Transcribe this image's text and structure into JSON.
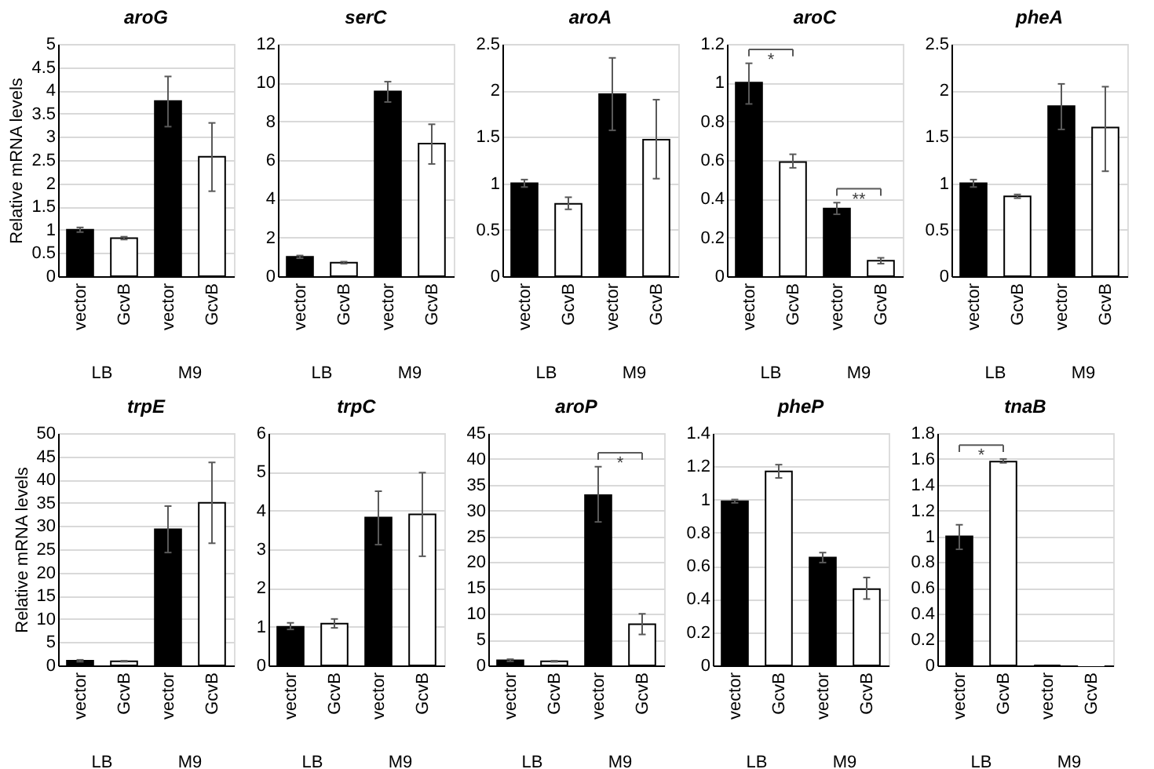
{
  "chart_data": [
    {
      "type": "bar",
      "title": "aroG",
      "ylabel": "Relative mRNA levels",
      "categories": [
        "vector",
        "GcvB",
        "vector",
        "GcvB"
      ],
      "values": [
        1.0,
        0.82,
        3.77,
        2.57
      ],
      "colors": [
        "#000000",
        "#ffffff",
        "#000000",
        "#ffffff"
      ],
      "errors": [
        [
          0.95,
          1.05
        ],
        [
          0.79,
          0.85
        ],
        [
          3.22,
          4.3
        ],
        [
          1.83,
          3.3
        ]
      ],
      "ylim": [
        0,
        5
      ],
      "yticks": [
        0,
        0.5,
        1,
        1.5,
        2,
        2.5,
        3,
        3.5,
        4,
        4.5,
        5
      ],
      "grid": "y",
      "annotations": [
        "LB",
        "M9"
      ]
    },
    {
      "type": "bar",
      "title": "serC",
      "categories": [
        "vector",
        "GcvB",
        "vector",
        "GcvB"
      ],
      "values": [
        1.0,
        0.7,
        9.55,
        6.85
      ],
      "colors": [
        "#000000",
        "#ffffff",
        "#000000",
        "#ffffff"
      ],
      "errors": [
        [
          0.93,
          1.07
        ],
        [
          0.65,
          0.75
        ],
        [
          9.0,
          10.05
        ],
        [
          5.8,
          7.85
        ]
      ],
      "ylim": [
        0,
        12
      ],
      "yticks": [
        0,
        2,
        4,
        6,
        8,
        10,
        12
      ],
      "grid": "y",
      "annotations": [
        "LB",
        "M9"
      ]
    },
    {
      "type": "bar",
      "title": "aroA",
      "categories": [
        "vector",
        "GcvB",
        "vector",
        "GcvB"
      ],
      "values": [
        1.0,
        0.78,
        1.96,
        1.47
      ],
      "colors": [
        "#000000",
        "#ffffff",
        "#000000",
        "#ffffff"
      ],
      "errors": [
        [
          0.96,
          1.04
        ],
        [
          0.72,
          0.85
        ],
        [
          1.57,
          2.35
        ],
        [
          1.05,
          1.9
        ]
      ],
      "ylim": [
        0,
        2.5
      ],
      "yticks": [
        0,
        0.5,
        1,
        1.5,
        2,
        2.5
      ],
      "grid": "y",
      "annotations": [
        "LB",
        "M9"
      ]
    },
    {
      "type": "bar",
      "title": "aroC",
      "categories": [
        "vector",
        "GcvB",
        "vector",
        "GcvB"
      ],
      "values": [
        1.0,
        0.59,
        0.35,
        0.08
      ],
      "colors": [
        "#000000",
        "#ffffff",
        "#000000",
        "#ffffff"
      ],
      "errors": [
        [
          0.89,
          1.1
        ],
        [
          0.56,
          0.63
        ],
        [
          0.32,
          0.38
        ],
        [
          0.065,
          0.095
        ]
      ],
      "ylim": [
        0,
        1.2
      ],
      "yticks": [
        0,
        0.2,
        0.4,
        0.6,
        0.8,
        1,
        1.2
      ],
      "grid": "y",
      "annotations": [
        "LB",
        "M9",
        "*",
        "**"
      ]
    },
    {
      "type": "bar",
      "title": "pheA",
      "categories": [
        "vector",
        "GcvB",
        "vector",
        "GcvB"
      ],
      "values": [
        1.0,
        0.86,
        1.83,
        1.6
      ],
      "colors": [
        "#000000",
        "#ffffff",
        "#000000",
        "#ffffff"
      ],
      "errors": [
        [
          0.96,
          1.04
        ],
        [
          0.84,
          0.88
        ],
        [
          1.58,
          2.07
        ],
        [
          1.13,
          2.04
        ]
      ],
      "ylim": [
        0,
        2.5
      ],
      "yticks": [
        0,
        0.5,
        1,
        1.5,
        2,
        2.5
      ],
      "grid": "y",
      "annotations": [
        "LB",
        "M9"
      ]
    },
    {
      "type": "bar",
      "title": "trpE",
      "ylabel": "Relative mRNA levels",
      "categories": [
        "vector",
        "GcvB",
        "vector",
        "GcvB"
      ],
      "values": [
        1.0,
        0.9,
        29.3,
        35
      ],
      "colors": [
        "#000000",
        "#ffffff",
        "#000000",
        "#ffffff"
      ],
      "errors": [
        [
          0.8,
          1.2
        ],
        [
          0.8,
          1.0
        ],
        [
          24.3,
          34.3
        ],
        [
          26.3,
          43.7
        ]
      ],
      "ylim": [
        0,
        50
      ],
      "yticks": [
        0,
        5,
        10,
        15,
        20,
        25,
        30,
        35,
        40,
        45,
        50
      ],
      "grid": "y",
      "annotations": [
        "LB",
        "M9"
      ]
    },
    {
      "type": "bar",
      "title": "trpC",
      "categories": [
        "vector",
        "GcvB",
        "vector",
        "GcvB"
      ],
      "values": [
        1.0,
        1.08,
        3.82,
        3.9
      ],
      "colors": [
        "#000000",
        "#ffffff",
        "#000000",
        "#ffffff"
      ],
      "errors": [
        [
          0.93,
          1.1
        ],
        [
          0.97,
          1.2
        ],
        [
          3.12,
          4.5
        ],
        [
          2.82,
          4.98
        ]
      ],
      "ylim": [
        0,
        6
      ],
      "yticks": [
        0,
        1,
        2,
        3,
        4,
        5,
        6
      ],
      "grid": "y",
      "annotations": [
        "LB",
        "M9"
      ]
    },
    {
      "type": "bar",
      "title": "aroP",
      "categories": [
        "vector",
        "GcvB",
        "vector",
        "GcvB"
      ],
      "values": [
        1.0,
        0.8,
        33,
        8.0
      ],
      "colors": [
        "#000000",
        "#ffffff",
        "#000000",
        "#ffffff"
      ],
      "errors": [
        [
          0.8,
          1.2
        ],
        [
          0.7,
          0.9
        ],
        [
          27.8,
          38.5
        ],
        [
          6,
          10
        ]
      ],
      "ylim": [
        0,
        45
      ],
      "yticks": [
        0,
        5,
        10,
        15,
        20,
        25,
        30,
        35,
        40,
        45
      ],
      "grid": "y",
      "annotations": [
        "LB",
        "M9",
        "*"
      ]
    },
    {
      "type": "bar",
      "title": "pheP",
      "categories": [
        "vector",
        "GcvB",
        "vector",
        "GcvB"
      ],
      "values": [
        0.99,
        1.17,
        0.65,
        0.46
      ],
      "colors": [
        "#000000",
        "#ffffff",
        "#000000",
        "#ffffff"
      ],
      "errors": [
        [
          0.98,
          1.0
        ],
        [
          1.13,
          1.21
        ],
        [
          0.62,
          0.68
        ],
        [
          0.4,
          0.53
        ]
      ],
      "ylim": [
        0,
        1.4
      ],
      "yticks": [
        0,
        0.2,
        0.4,
        0.6,
        0.8,
        1,
        1.2,
        1.4
      ],
      "grid": "y",
      "annotations": [
        "LB",
        "M9"
      ]
    },
    {
      "type": "bar",
      "title": "tnaB",
      "categories": [
        "vector",
        "GcvB",
        "vector",
        "GcvB"
      ],
      "values": [
        1.0,
        1.58,
        0,
        0
      ],
      "colors": [
        "#000000",
        "#ffffff",
        "#000000",
        "#ffffff"
      ],
      "errors": [
        [
          0.9,
          1.09
        ],
        [
          1.57,
          1.6
        ],
        null,
        null
      ],
      "ylim": [
        0,
        1.8
      ],
      "yticks": [
        0,
        0.2,
        0.4,
        0.6,
        0.8,
        1,
        1.2,
        1.4,
        1.6,
        1.8
      ],
      "grid": "y",
      "annotations": [
        "LB",
        "M9",
        "*"
      ]
    }
  ]
}
